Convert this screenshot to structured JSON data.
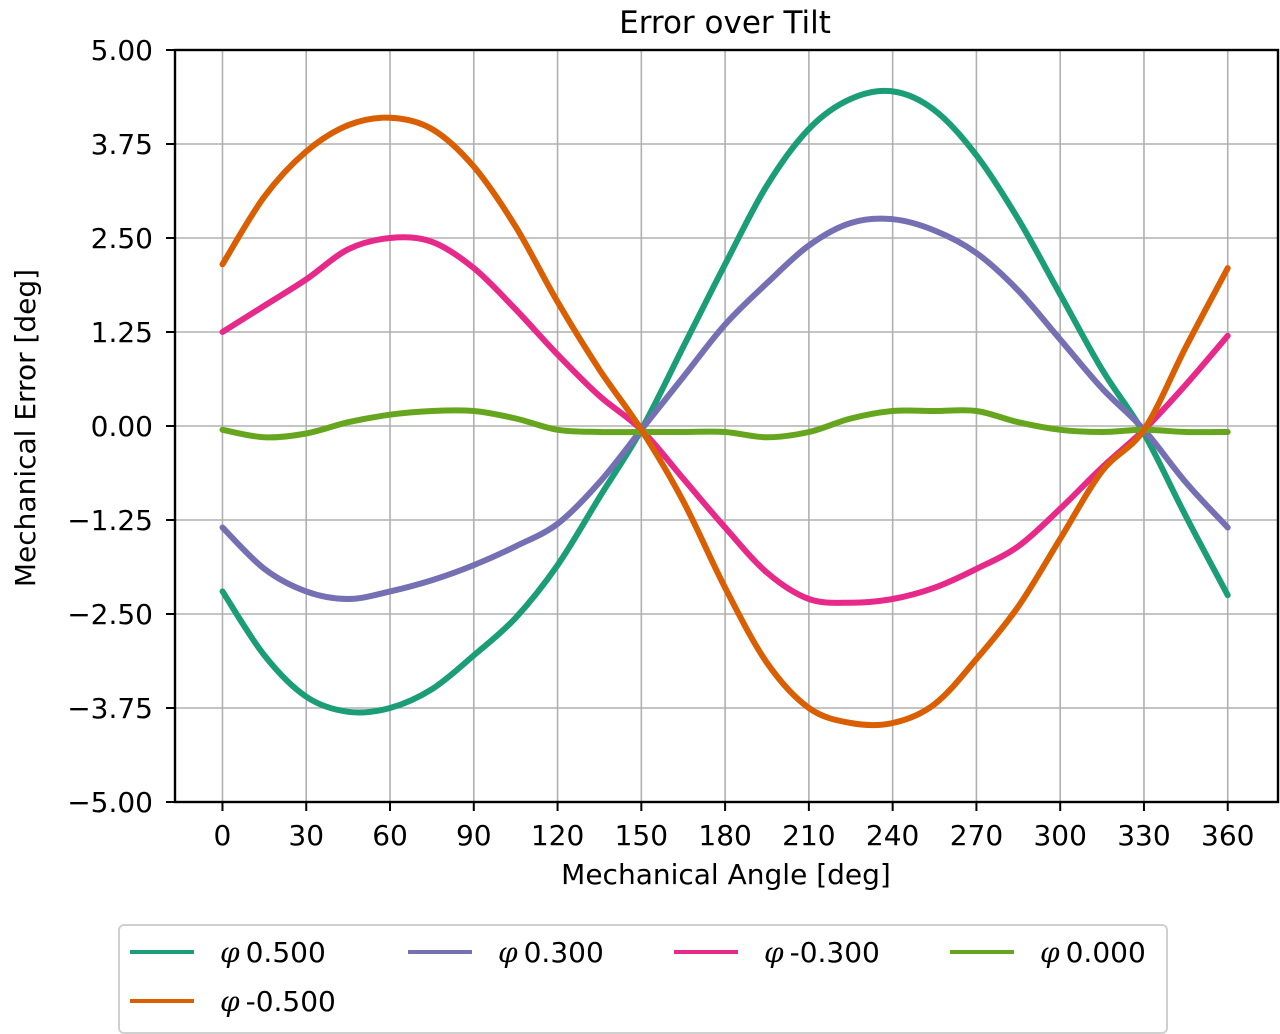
{
  "chart_data": {
    "type": "line",
    "title": "Error over Tilt",
    "xlabel": "Mechanical Angle [deg]",
    "ylabel": "Mechanical Error [deg]",
    "xlim": [
      -17,
      378
    ],
    "ylim": [
      -5.0,
      5.0
    ],
    "xticks": [
      0,
      30,
      60,
      90,
      120,
      150,
      180,
      210,
      240,
      270,
      300,
      330,
      360
    ],
    "xtick_labels": [
      "0",
      "30",
      "60",
      "90",
      "120",
      "150",
      "180",
      "210",
      "240",
      "270",
      "300",
      "330",
      "360"
    ],
    "yticks": [
      5.0,
      3.75,
      2.5,
      1.25,
      0.0,
      -1.25,
      -2.5,
      -3.75,
      -5.0
    ],
    "ytick_labels": [
      "5.00",
      "3.75",
      "2.50",
      "1.25",
      "0.00",
      "−1.25",
      "−2.50",
      "−3.75",
      "−5.00"
    ],
    "grid": true,
    "legend_position": "below",
    "x": [
      0,
      15,
      30,
      45,
      60,
      75,
      90,
      105,
      120,
      135,
      150,
      165,
      180,
      195,
      210,
      225,
      240,
      255,
      270,
      285,
      300,
      315,
      330,
      345,
      360
    ],
    "series": [
      {
        "name": "φ 0.500",
        "greek": "φ",
        "label": "0.500",
        "color": "#1b9e77",
        "values": [
          -2.2,
          -3.05,
          -3.6,
          -3.8,
          -3.75,
          -3.5,
          -3.05,
          -2.55,
          -1.85,
          -0.95,
          -0.05,
          1.05,
          2.15,
          3.2,
          3.95,
          4.35,
          4.45,
          4.2,
          3.6,
          2.75,
          1.75,
          0.75,
          -0.1,
          -1.2,
          -2.25
        ]
      },
      {
        "name": "φ 0.300",
        "greek": "φ",
        "label": "0.300",
        "color": "#7570b3",
        "values": [
          -1.35,
          -1.9,
          -2.2,
          -2.3,
          -2.2,
          -2.05,
          -1.85,
          -1.6,
          -1.3,
          -0.75,
          -0.05,
          0.65,
          1.35,
          1.9,
          2.4,
          2.7,
          2.75,
          2.6,
          2.3,
          1.8,
          1.15,
          0.5,
          -0.05,
          -0.75,
          -1.35
        ]
      },
      {
        "name": "φ -0.300",
        "greek": "φ",
        "label": "-0.300",
        "color": "#e7298a",
        "values": [
          1.25,
          1.6,
          1.95,
          2.35,
          2.5,
          2.45,
          2.1,
          1.55,
          0.95,
          0.4,
          -0.05,
          -0.7,
          -1.35,
          -1.95,
          -2.3,
          -2.35,
          -2.3,
          -2.15,
          -1.9,
          -1.6,
          -1.1,
          -0.55,
          -0.05,
          0.55,
          1.2
        ]
      },
      {
        "name": "φ 0.000",
        "greek": "φ",
        "label": "0.000",
        "color": "#66a61e",
        "values": [
          -0.05,
          -0.15,
          -0.1,
          0.05,
          0.15,
          0.2,
          0.2,
          0.1,
          -0.05,
          -0.08,
          -0.08,
          -0.08,
          -0.08,
          -0.15,
          -0.08,
          0.1,
          0.2,
          0.2,
          0.2,
          0.05,
          -0.05,
          -0.08,
          -0.05,
          -0.08,
          -0.08
        ]
      },
      {
        "name": "φ -0.500",
        "greek": "φ",
        "label": "-0.500",
        "color": "#d95f02",
        "values": [
          2.15,
          3.05,
          3.65,
          4.0,
          4.1,
          3.95,
          3.45,
          2.65,
          1.65,
          0.75,
          -0.05,
          -1.0,
          -2.15,
          -3.15,
          -3.75,
          -3.95,
          -3.95,
          -3.7,
          -3.1,
          -2.4,
          -1.5,
          -0.6,
          -0.05,
          1.05,
          2.1
        ]
      }
    ]
  },
  "legend": {
    "items": [
      {
        "greek": "φ",
        "label": "0.500",
        "color": "#1b9e77"
      },
      {
        "greek": "φ",
        "label": "0.300",
        "color": "#7570b3"
      },
      {
        "greek": "φ",
        "label": "-0.300",
        "color": "#e7298a"
      },
      {
        "greek": "φ",
        "label": "0.000",
        "color": "#66a61e"
      },
      {
        "greek": "φ",
        "label": "-0.500",
        "color": "#d95f02"
      }
    ]
  }
}
